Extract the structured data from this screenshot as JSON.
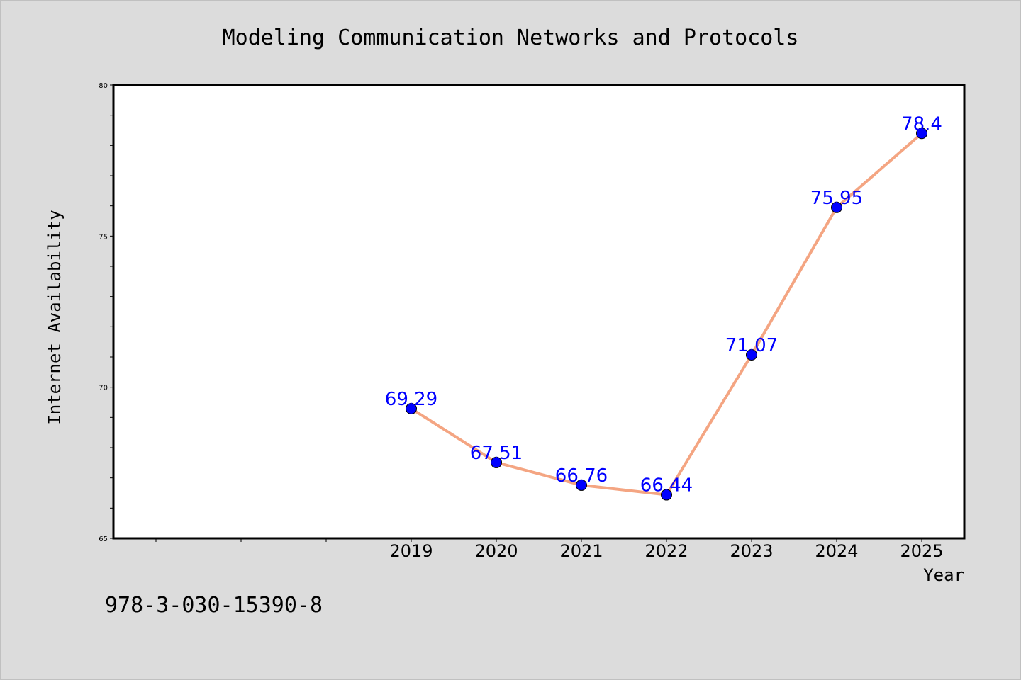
{
  "chart_data": {
    "type": "line",
    "title": "Modeling Communication Networks and Protocols",
    "xlabel": "Year",
    "ylabel": "Internet Availability",
    "x": [
      "2019",
      "2020",
      "2021",
      "2022",
      "2023",
      "2024",
      "2025"
    ],
    "series": [
      {
        "values": [
          69.29,
          67.51,
          66.76,
          66.44,
          71.07,
          75.95,
          78.4
        ],
        "labels": [
          "69.29",
          "67.51",
          "66.76",
          "66.44",
          "71.07",
          "75.95",
          "78.4"
        ]
      }
    ],
    "ylim": [
      65,
      80
    ],
    "yticks": [
      "65",
      "70",
      "75",
      "80"
    ],
    "x_empty_slots_before": 3,
    "grid": false,
    "legend": "none",
    "line_color": "#f4a582",
    "marker_color": "#0000ff",
    "label_color": "#0000ff",
    "plot_background": "#ffffff",
    "page_background": "#dcdcdc"
  },
  "annotation": "978-3-030-15390-8"
}
